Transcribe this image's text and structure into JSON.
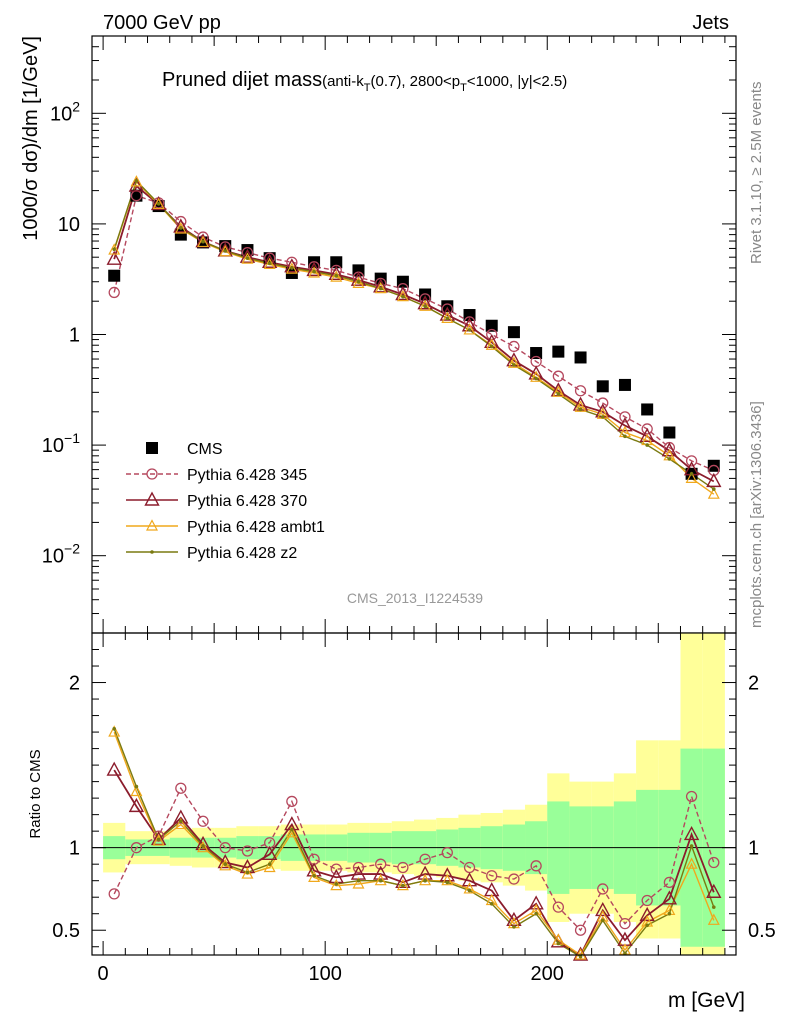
{
  "header": {
    "left": "7000 GeV pp",
    "right": "Jets"
  },
  "side_labels": {
    "rivet": "Rivet 3.1.10, ≥ 2.5M events",
    "mcplots": "mcplots.cern.ch [arXiv:1306.3436]"
  },
  "analysis_id": "CMS_2013_I1224539",
  "colors": {
    "cms": "#000000",
    "p345": "#b5485e",
    "p370": "#8b1c2c",
    "ambt1": "#f0a81c",
    "z2": "#7a7a10",
    "band_inner": "#99ff99",
    "band_outer": "#ffff99"
  },
  "chart_data": [
    {
      "type": "scatter",
      "title_main": "Pruned dijet mass",
      "title_sub": "(anti-k",
      "title_sub_sub": "T",
      "title_sub_mid": "(0.7), 2800<p",
      "title_sub_sub2": "T",
      "title_sub_end": "<1000, |y|<2.5)",
      "ylabel": "1000/σ dσ)/dm [1/GeV]",
      "yscale": "log",
      "ylim": [
        0.002,
        500
      ],
      "xlim": [
        -5,
        285
      ],
      "yticks": [
        {
          "v": 0.01,
          "base": "10",
          "exp": "−2"
        },
        {
          "v": 0.1,
          "base": "10",
          "exp": "−1"
        },
        {
          "v": 1,
          "base": "1",
          "exp": ""
        },
        {
          "v": 10,
          "base": "10",
          "exp": ""
        },
        {
          "v": 100,
          "base": "10",
          "exp": "2"
        }
      ],
      "x": [
        5,
        15,
        25,
        35,
        45,
        55,
        65,
        75,
        85,
        95,
        105,
        115,
        125,
        135,
        145,
        155,
        165,
        175,
        185,
        195,
        205,
        215,
        225,
        235,
        245,
        255,
        265,
        275
      ],
      "series": [
        {
          "name": "CMS",
          "key": "cms",
          "marker": "square",
          "values": [
            3.4,
            18.0,
            14.5,
            8.0,
            6.8,
            6.3,
            5.8,
            4.9,
            3.6,
            4.5,
            4.5,
            3.8,
            3.2,
            3.0,
            2.3,
            1.8,
            1.5,
            1.2,
            1.05,
            0.68,
            0.7,
            0.62,
            0.34,
            0.35,
            0.21,
            0.13,
            0.055,
            0.065
          ]
        },
        {
          "name": "Pythia 6.428 345",
          "key": "p345",
          "marker": "circle",
          "dash": true,
          "values": [
            2.4,
            18.0,
            15.5,
            10.5,
            7.6,
            6.2,
            5.5,
            4.9,
            4.5,
            4.1,
            3.8,
            3.3,
            2.9,
            2.6,
            2.1,
            1.7,
            1.3,
            1.0,
            0.78,
            0.57,
            0.42,
            0.31,
            0.24,
            0.18,
            0.14,
            0.095,
            0.072,
            0.059
          ]
        },
        {
          "name": "Pythia 6.428 370",
          "key": "p370",
          "marker": "triangle",
          "values": [
            4.8,
            22.0,
            15.0,
            9.4,
            6.9,
            5.7,
            5.0,
            4.5,
            4.1,
            3.8,
            3.5,
            3.1,
            2.7,
            2.3,
            1.9,
            1.5,
            1.2,
            0.85,
            0.58,
            0.44,
            0.31,
            0.23,
            0.2,
            0.15,
            0.12,
            0.089,
            0.06,
            0.047
          ]
        },
        {
          "name": "Pythia 6.428 ambt1",
          "key": "ambt1",
          "marker": "triangle-small",
          "values": [
            5.8,
            24.0,
            15.0,
            9.0,
            6.8,
            5.6,
            4.8,
            4.3,
            3.9,
            3.6,
            3.3,
            2.9,
            2.6,
            2.2,
            1.8,
            1.4,
            1.1,
            0.8,
            0.55,
            0.41,
            0.3,
            0.22,
            0.19,
            0.13,
            0.11,
            0.08,
            0.05,
            0.036
          ]
        },
        {
          "name": "Pythia 6.428 z2",
          "key": "z2",
          "marker": "dot",
          "values": [
            5.9,
            24.5,
            15.2,
            9.2,
            6.9,
            5.7,
            4.9,
            4.4,
            4.0,
            3.7,
            3.4,
            3.0,
            2.6,
            2.2,
            1.8,
            1.4,
            1.1,
            0.78,
            0.53,
            0.4,
            0.29,
            0.21,
            0.18,
            0.12,
            0.1,
            0.075,
            0.055,
            0.04
          ]
        }
      ],
      "legend_position": "bottom-left"
    },
    {
      "type": "line",
      "ylabel": "Ratio to CMS",
      "xlabel": "m [GeV]",
      "ylim": [
        0.35,
        2.3
      ],
      "xlim": [
        -5,
        285
      ],
      "yticks": [
        {
          "v": 0.5,
          "label": "0.5"
        },
        {
          "v": 1,
          "label": "1"
        },
        {
          "v": 2,
          "label": "2"
        }
      ],
      "xticks": [
        {
          "v": 0,
          "label": "0"
        },
        {
          "v": 100,
          "label": "100"
        },
        {
          "v": 200,
          "label": "200"
        }
      ],
      "x": [
        5,
        15,
        25,
        35,
        45,
        55,
        65,
        75,
        85,
        95,
        105,
        115,
        125,
        135,
        145,
        155,
        165,
        175,
        185,
        195,
        205,
        215,
        225,
        235,
        245,
        255,
        265,
        275
      ],
      "band_inner_lo": [
        0.93,
        0.95,
        0.95,
        0.94,
        0.94,
        0.94,
        0.93,
        0.93,
        0.92,
        0.92,
        0.92,
        0.91,
        0.91,
        0.9,
        0.9,
        0.89,
        0.88,
        0.87,
        0.86,
        0.84,
        0.72,
        0.75,
        0.75,
        0.72,
        0.65,
        0.65,
        0.4,
        0.4
      ],
      "band_inner_hi": [
        1.07,
        1.05,
        1.05,
        1.06,
        1.06,
        1.06,
        1.07,
        1.07,
        1.08,
        1.08,
        1.08,
        1.09,
        1.09,
        1.1,
        1.1,
        1.11,
        1.12,
        1.13,
        1.14,
        1.16,
        1.28,
        1.25,
        1.25,
        1.28,
        1.35,
        1.35,
        1.6,
        1.6
      ],
      "band_outer_lo": [
        0.85,
        0.9,
        0.9,
        0.89,
        0.88,
        0.88,
        0.87,
        0.87,
        0.86,
        0.86,
        0.86,
        0.85,
        0.85,
        0.84,
        0.83,
        0.82,
        0.8,
        0.79,
        0.77,
        0.74,
        0.55,
        0.6,
        0.6,
        0.55,
        0.45,
        0.45,
        0.2,
        0.2
      ],
      "band_outer_hi": [
        1.15,
        1.1,
        1.1,
        1.11,
        1.12,
        1.12,
        1.13,
        1.13,
        1.14,
        1.14,
        1.14,
        1.15,
        1.15,
        1.16,
        1.17,
        1.18,
        1.2,
        1.21,
        1.23,
        1.26,
        1.45,
        1.4,
        1.4,
        1.45,
        1.65,
        1.65,
        2.5,
        2.5
      ],
      "series": [
        {
          "name": "Pythia 6.428 345",
          "key": "p345",
          "marker": "circle",
          "dash": true,
          "values": [
            0.72,
            1.0,
            1.07,
            1.36,
            1.16,
            1.0,
            0.98,
            1.03,
            1.28,
            0.93,
            0.87,
            0.88,
            0.9,
            0.88,
            0.93,
            0.97,
            0.88,
            0.83,
            0.81,
            0.89,
            0.64,
            0.5,
            0.75,
            0.54,
            0.68,
            0.79,
            1.31,
            0.91
          ]
        },
        {
          "name": "Pythia 6.428 370",
          "key": "p370",
          "marker": "triangle",
          "values": [
            1.47,
            1.25,
            1.05,
            1.18,
            1.02,
            0.91,
            0.88,
            0.96,
            1.14,
            0.86,
            0.82,
            0.84,
            0.84,
            0.79,
            0.84,
            0.83,
            0.8,
            0.74,
            0.56,
            0.66,
            0.43,
            0.35,
            0.62,
            0.44,
            0.59,
            0.69,
            1.08,
            0.73
          ]
        },
        {
          "name": "Pythia 6.428 ambt1",
          "key": "ambt1",
          "marker": "triangle-small",
          "values": [
            1.7,
            1.34,
            1.04,
            1.14,
            1.0,
            0.89,
            0.84,
            0.88,
            1.09,
            0.82,
            0.77,
            0.78,
            0.8,
            0.77,
            0.8,
            0.8,
            0.75,
            0.68,
            0.54,
            0.62,
            0.44,
            0.35,
            0.58,
            0.38,
            0.55,
            0.62,
            0.9,
            0.56
          ]
        },
        {
          "name": "Pythia 6.428 z2",
          "key": "z2",
          "marker": "dot",
          "values": [
            1.72,
            1.37,
            1.05,
            1.16,
            1.01,
            0.9,
            0.85,
            0.9,
            1.11,
            0.83,
            0.78,
            0.8,
            0.8,
            0.77,
            0.8,
            0.79,
            0.74,
            0.66,
            0.52,
            0.6,
            0.42,
            0.34,
            0.56,
            0.36,
            0.53,
            0.6,
            1.01,
            0.64
          ]
        }
      ]
    }
  ]
}
